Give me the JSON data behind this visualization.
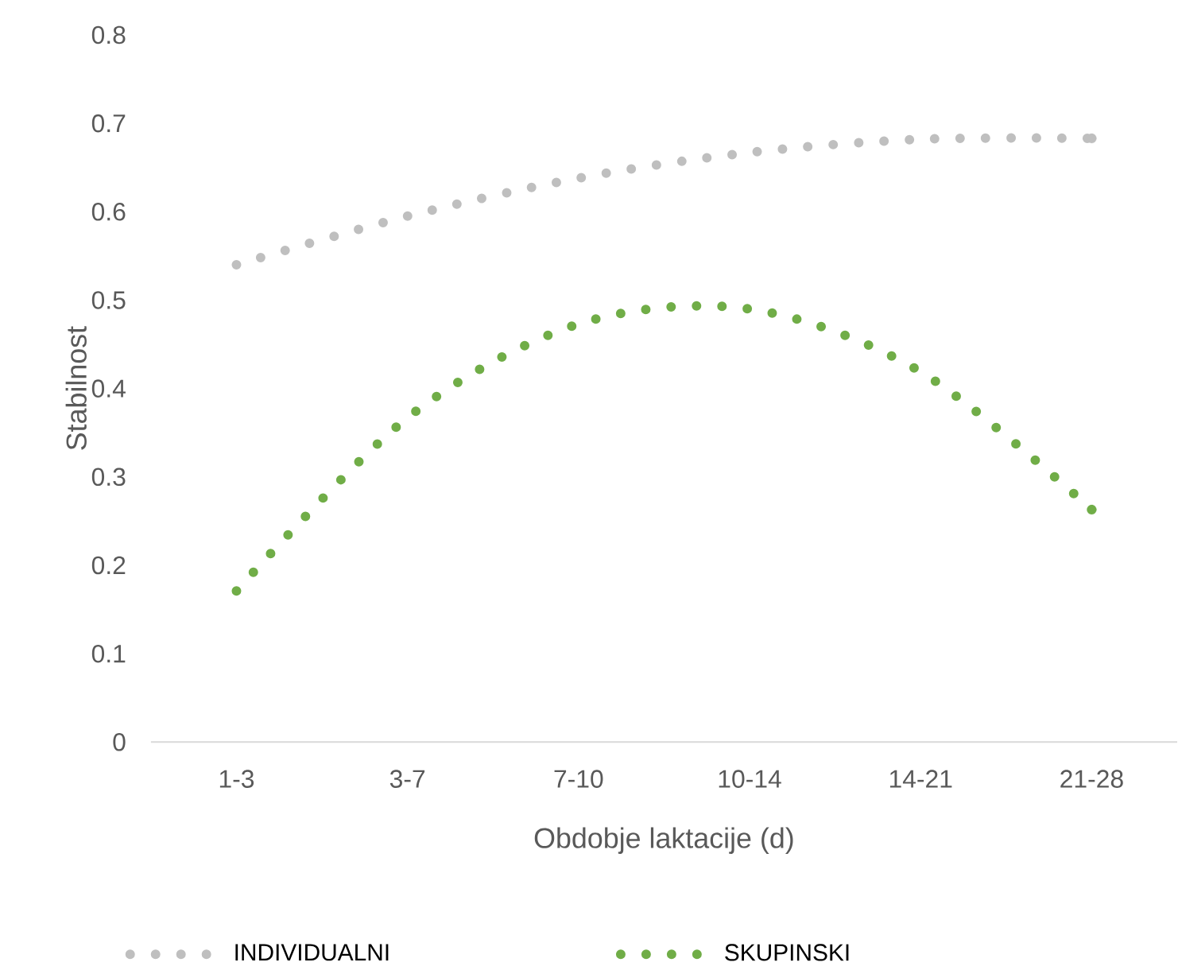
{
  "chart_data": {
    "type": "line",
    "categories": [
      "1-3",
      "3-7",
      "7-10",
      "10-14",
      "14-21",
      "21-28"
    ],
    "series": [
      {
        "name": "INDIVIDUALNI",
        "color": "#bfbfbf",
        "values": [
          0.54,
          0.595,
          0.638,
          0.667,
          0.682,
          0.683
        ]
      },
      {
        "name": "SKUPINSKI",
        "color": "#70ad47",
        "values": [
          0.171,
          0.367,
          0.473,
          0.49,
          0.419,
          0.263
        ]
      }
    ],
    "xlabel": "Obdobje laktacije (d)",
    "ylabel": "Stabilnost",
    "ylim": [
      0,
      0.8
    ],
    "yticks": [
      0,
      0.1,
      0.2,
      0.3,
      0.4,
      0.5,
      0.6,
      0.7,
      0.8
    ],
    "legend": "bottom",
    "line_style": "dotted"
  }
}
